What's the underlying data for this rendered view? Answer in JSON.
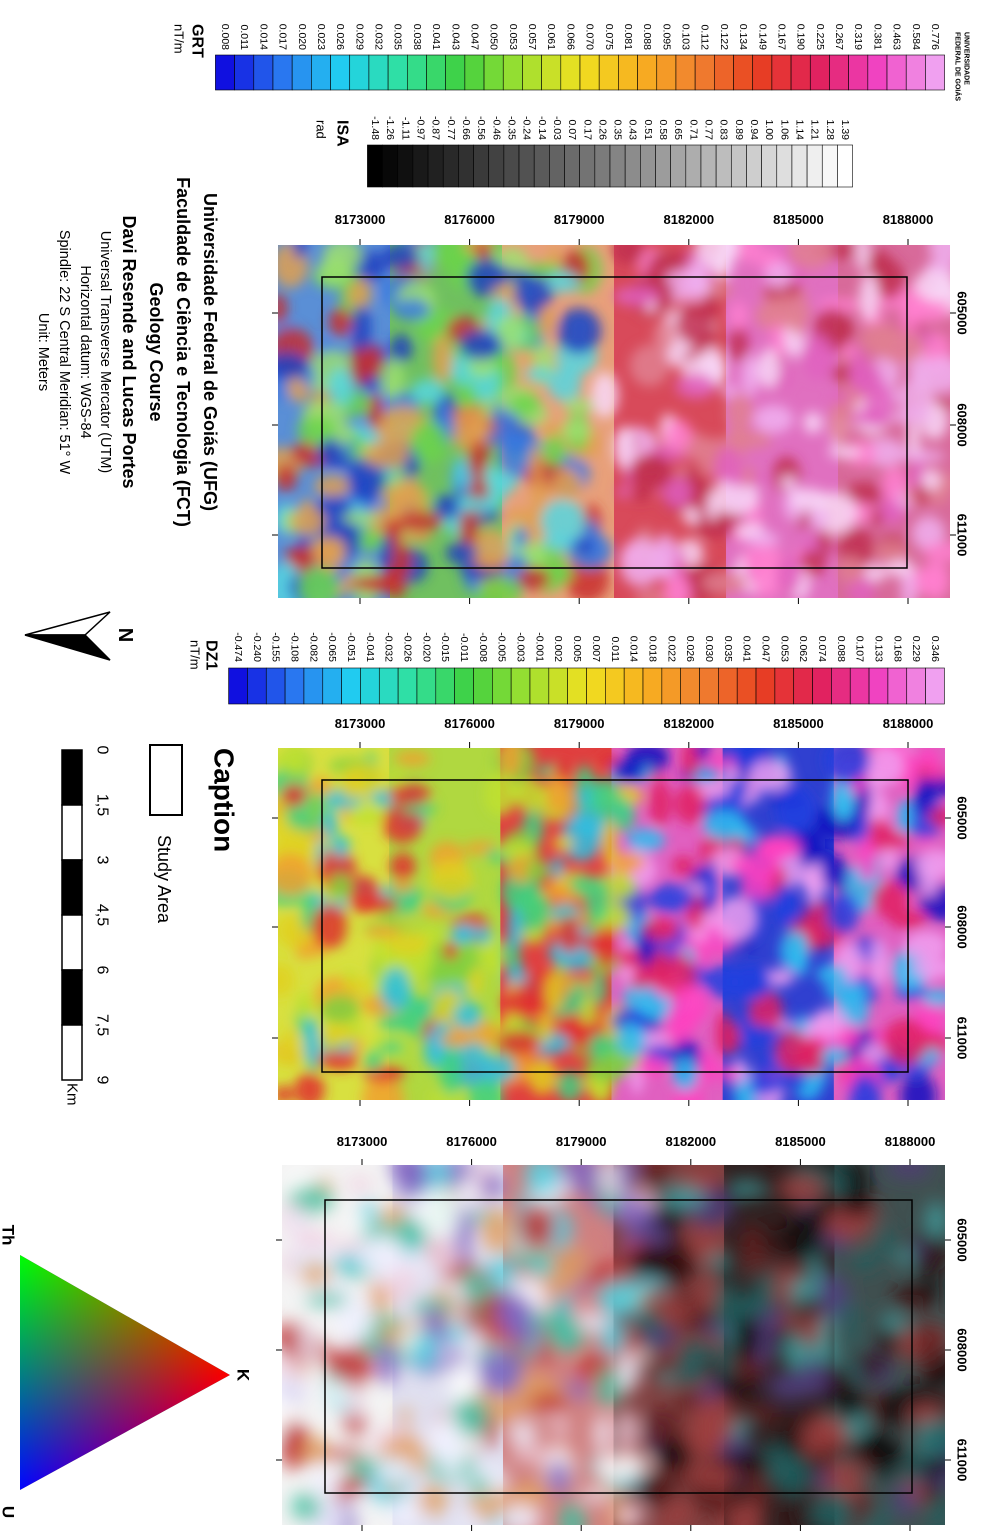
{
  "logo": [
    "UNIVERSIDADE",
    "FEDERAL DE GOIÁS"
  ],
  "legends": [
    {
      "title": "GRT",
      "unit": "nT/m",
      "labels": [
        "0.008",
        "0.011",
        "0.014",
        "0.017",
        "0.020",
        "0.023",
        "0.026",
        "0.029",
        "0.032",
        "0.035",
        "0.038",
        "0.041",
        "0.043",
        "0.047",
        "0.050",
        "0.053",
        "0.057",
        "0.061",
        "0.066",
        "0.070",
        "0.075",
        "0.081",
        "0.088",
        "0.095",
        "0.103",
        "0.112",
        "0.122",
        "0.134",
        "0.149",
        "0.167",
        "0.190",
        "0.225",
        "0.267",
        "0.319",
        "0.381",
        "0.463",
        "0.584",
        "0.776"
      ]
    },
    {
      "title": "ISA",
      "unit": "rad",
      "labels": [
        "-1.48",
        "-1.26",
        "-1.11",
        "-0.97",
        "-0.87",
        "-0.77",
        "-0.66",
        "-0.56",
        "-0.46",
        "-0.35",
        "-0.24",
        "-0.14",
        "-0.03",
        "0.07",
        "0.17",
        "0.26",
        "0.35",
        "0.43",
        "0.51",
        "0.58",
        "0.65",
        "0.71",
        "0.77",
        "0.83",
        "0.89",
        "0.94",
        "1.00",
        "1.06",
        "1.14",
        "1.21",
        "1.28",
        "1.39"
      ]
    },
    {
      "title": "DZ1",
      "unit": "nT/m",
      "labels": [
        "-0.474",
        "-0.240",
        "-0.155",
        "-0.108",
        "-0.082",
        "-0.065",
        "-0.051",
        "-0.041",
        "-0.032",
        "-0.026",
        "-0.020",
        "-0.015",
        "-0.011",
        "-0.008",
        "-0.005",
        "-0.003",
        "-0.001",
        "0.002",
        "0.005",
        "0.007",
        "0.011",
        "0.014",
        "0.018",
        "0.022",
        "0.026",
        "0.030",
        "0.035",
        "0.041",
        "0.047",
        "0.053",
        "0.062",
        "0.074",
        "0.088",
        "0.107",
        "0.133",
        "0.168",
        "0.229",
        "0.346"
      ]
    }
  ],
  "maps": [
    {
      "northings": [
        "8173000",
        "8176000",
        "8179000",
        "8182000",
        "8185000",
        "8188000"
      ],
      "eastings": [
        "605000",
        "608000",
        "611000"
      ]
    },
    {
      "northings": [
        "8173000",
        "8176000",
        "8179000",
        "8182000",
        "8185000",
        "8188000"
      ],
      "eastings": [
        "605000",
        "608000",
        "611000"
      ]
    },
    {
      "northings": [
        "8173000",
        "8176000",
        "8179000",
        "8182000",
        "8185000",
        "8188000"
      ],
      "eastings": [
        "605000",
        "608000",
        "611000"
      ]
    }
  ],
  "info": [
    "Universidade Federal de Goiás (UFG)",
    "Faculdade de Ciência e Tecnologia (FCT)",
    "Geology Course",
    "Davi Resende and Lucas Portes",
    "Universal Transverse Mercator (UTM)",
    "Horizontal datum: WGS-84",
    "Spindle: 22 S Central Meridian: 51° W",
    "Unit: Meters"
  ],
  "north": "N",
  "caption": {
    "title": "Caption",
    "item": "Study Area"
  },
  "scale": {
    "labels": [
      "0",
      "1,5",
      "3",
      "4,5",
      "6",
      "7,5",
      "9"
    ],
    "unit": "Km"
  },
  "ternary": {
    "top": "Th",
    "right": "K",
    "bottom": "U"
  }
}
